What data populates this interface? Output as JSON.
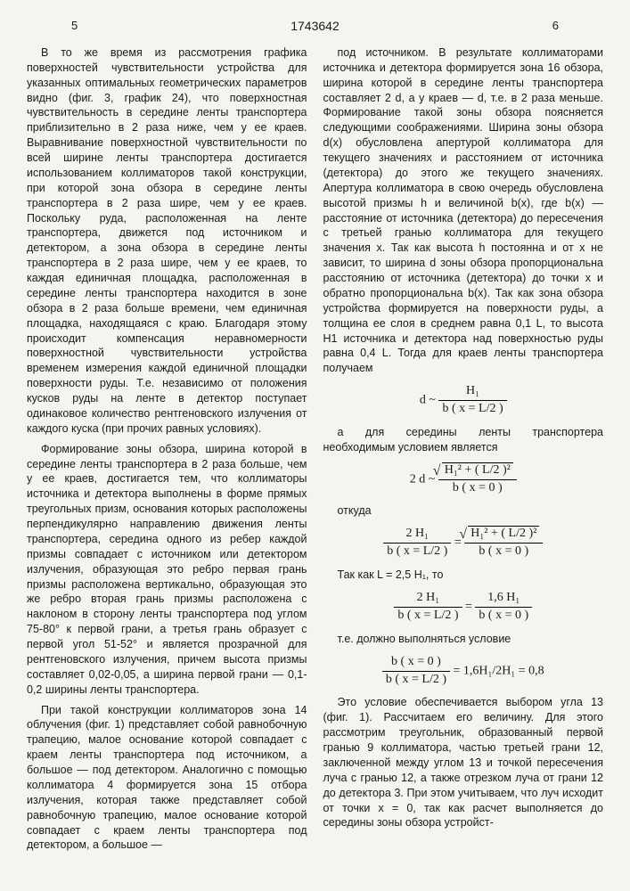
{
  "header": {
    "page_left": "5",
    "doc_number": "1743642",
    "page_right": "6"
  },
  "left_column": {
    "p1": "В то же время из рассмотрения графика поверхностей чувствительности устройства для указанных оптимальных геометрических параметров видно (фиг. 3, график 24), что поверхностная чувствительность в середине ленты транспортера приблизительно в 2 раза ниже, чем у ее краев. Выравнивание поверхностной чувствительности по всей ширине ленты транспортера достигается использованием коллиматоров такой конструкции, при которой зона обзора в середине ленты транспортера в 2 раза шире, чем у ее краев. Поскольку руда, расположенная на ленте транспортера, движется под источником и детектором, а зона обзора в середине ленты транспортера в 2 раза шире, чем у ее краев, то каждая единичная площадка, расположенная в середине ленты транспортера находится в зоне обзора в 2 раза больше времени, чем единичная площадка, находящаяся с краю. Благодаря этому происходит компенсация неравномерности поверхностной чувствительности устройства временем измерения каждой единичной площадки поверхности руды. Т.е. независимо от положения кусков руды на ленте в детектор поступает одинаковое количество рентгеновского излучения от каждого куска (при прочих равных условиях).",
    "p2": "Формирование зоны обзора, ширина которой в середине ленты транспортера в 2 раза больше, чем у ее краев, достигается тем, что коллиматоры источника и детектора выполнены в форме прямых треугольных призм, основания которых расположены перпендикулярно направлению движения ленты транспортера, середина одного из ребер каждой призмы совпадает с источником или детектором излучения, образующая это ребро первая грань призмы расположена вертикально, образующая это же ребро вторая грань призмы расположена с наклоном в сторону ленты транспортера под углом 75-80° к первой грани, а третья грань образует с первой угол 51-52° и является прозрачной для рентгеновского излучения, причем высота призмы составляет 0,02-0,05, а ширина первой грани — 0,1-0,2 ширины ленты транспортера.",
    "p3": "При такой конструкции коллиматоров зона 14 облучения (фиг. 1) представляет собой равнобочную трапецию, малое основание которой совпадает с краем ленты транспортера под источником, а большое — под детектором. Аналогично с помощью коллиматора 4 формируется зона 15 отбора излучения, которая также представляет собой равнобочную трапецию, малое основание которой совпадает с краем ленты транспортера под детектором, а большое —"
  },
  "right_column": {
    "p1": "под источником. В результате коллиматорами источника и детектора формируется зона 16 обзора, ширина которой в середине ленты транспортера составляет 2 d, а у краев — d, т.е. в 2 раза меньше. Формирование такой зоны обзора поясняется следующими соображениями. Ширина зоны обзора d(x) обусловлена апертурой коллиматора для текущего значениях и расстоянием от источника (детектора) до этого же текущего значениях. Апертура коллиматора в свою очередь обусловлена высотой призмы h и величиной b(x), где b(x) — расстояние от источника (детектора) до пересечения с третьей гранью коллиматора для текущего значения x. Так как высота h постоянна и от x не зависит, то ширина d зоны обзора пропорциональна расстоянию от источника (детектора) до точки x и обратно пропорциональна b(x). Так как зона обзора устройства формируется на поверхности руды, а толщина ее слоя в среднем равна 0,1 L, то высота H1 источника и детектора над поверхностью руды равна 0,4 L. Тогда для краев ленты транспортера получаем",
    "f1_lhs": "d ~",
    "f1_num": "H₁",
    "f1_den": "b ( x = L/2 )",
    "p2": "а для середины ленты транспортера необходимым условием является",
    "f2_lhs": "2 d ~",
    "f2_num": "H₁² + ( L/2 )²",
    "f2_den": "b ( x = 0 )",
    "p3": "откуда",
    "f3_l_num": "2 H₁",
    "f3_l_den": "b ( x = L/2 )",
    "f3_eq": " = ",
    "f3_r_num": "H₁² + ( L/2 )²",
    "f3_r_den": "b ( x = 0 )",
    "p4": "Так как L = 2,5 H₁, то",
    "f4_l_num": "2 H₁",
    "f4_l_den": "b ( x = L/2 )",
    "f4_eq": " = ",
    "f4_r_num": "1,6 H₁",
    "f4_r_den": "b ( x = 0 )",
    "p5": "т.е. должно выполняться условие",
    "f5_num": "b ( x = 0 )",
    "f5_den": "b ( x = L/2 )",
    "f5_rhs": " = 1,6H₁/2H₁ = 0,8",
    "p6": "Это условие обеспечивается выбором угла 13 (фиг. 1). Рассчитаем его величину. Для этого рассмотрим треугольник, образованный первой гранью 9 коллиматора, частью третьей грани 12, заключенной между углом 13 и точкой пересечения луча с гранью 12, а также отрезком луча от грани 12 до детектора 3. При этом учитываем, что луч исходит от точки x = 0, так как расчет выполняется до середины зоны обзора устройст-"
  },
  "line_markers": [
    "5",
    "10",
    "15",
    "20",
    "25",
    "30",
    "35",
    "40",
    "45",
    "50",
    "55"
  ]
}
